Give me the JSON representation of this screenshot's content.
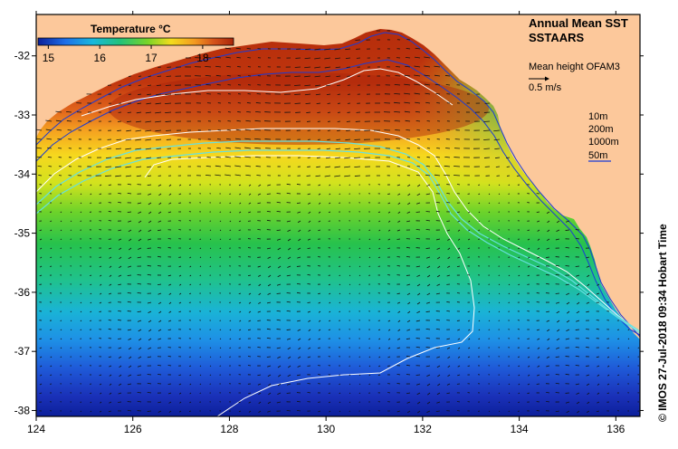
{
  "map": {
    "title": "Annual Mean SST",
    "subtitle": "SSTAARS",
    "vector_label": "Mean height OFAM3",
    "vector_scale": "0.5 m/s",
    "credit": "© IMOS 27-Jul-2018 09:34 Hobart Time",
    "colorbar": {
      "title": "Temperature °C",
      "min": 14.8,
      "max": 18.6,
      "ticks": [
        "15",
        "16",
        "17",
        "18"
      ],
      "tick_values": [
        15,
        16,
        17,
        18
      ]
    },
    "isobaths": [
      "10m",
      "200m",
      "1000m",
      "50m"
    ],
    "lon_ticks": [
      "124",
      "126",
      "128",
      "130",
      "132",
      "134",
      "136"
    ],
    "lon_values": [
      124,
      126,
      128,
      130,
      132,
      134,
      136
    ],
    "lat_ticks": [
      "-32",
      "-33",
      "-34",
      "-35",
      "-36",
      "-37",
      "-38"
    ],
    "lat_values": [
      -32,
      -33,
      -34,
      -35,
      -36,
      -37,
      -38
    ],
    "lon_range": [
      124,
      136.5
    ],
    "lat_range": [
      -38.1,
      -31.3
    ],
    "colors": {
      "land": "#fcc89b",
      "frame": "#000000",
      "isobath_10m": "#1b3bd6",
      "isobath_200m": "#ffffff",
      "isobath_1000m": "#66e0e0",
      "isobath_50m": "#1b3bd6"
    }
  }
}
